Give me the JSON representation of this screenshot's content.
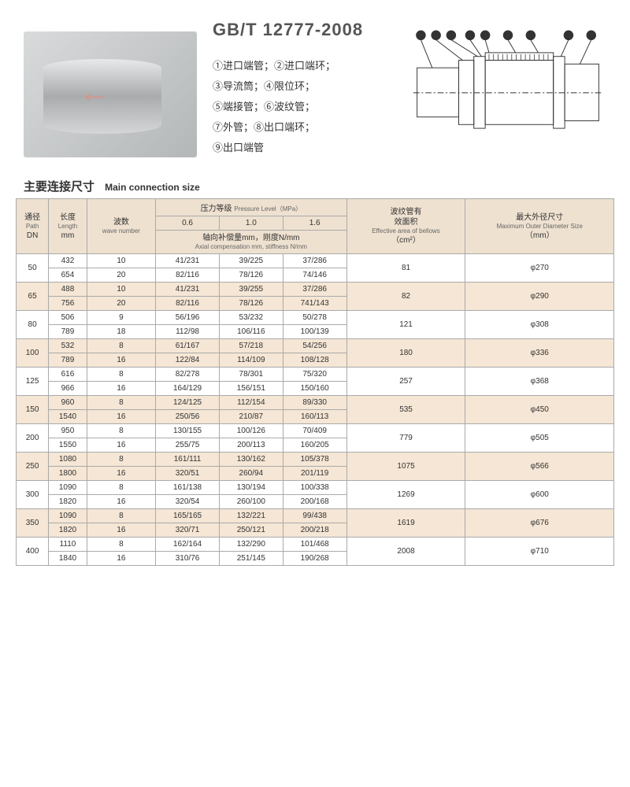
{
  "standard": "GB/T 12777-2008",
  "parts": [
    {
      "n": "①",
      "t": "进口端管；"
    },
    {
      "n": "②",
      "t": "进口端环；"
    },
    {
      "n": "③",
      "t": "导流筒；"
    },
    {
      "n": "④",
      "t": "限位环；"
    },
    {
      "n": "⑤",
      "t": "端接管；"
    },
    {
      "n": "⑥",
      "t": "波纹管；"
    },
    {
      "n": "⑦",
      "t": "外管；"
    },
    {
      "n": "⑧",
      "t": "出口端环；"
    },
    {
      "n": "⑨",
      "t": "出口端管"
    }
  ],
  "section": {
    "cn": "主要连接尺寸",
    "en": "Main connection size"
  },
  "headers": {
    "dn": {
      "cn": "通径",
      "en": "Path",
      "unit": "DN"
    },
    "len": {
      "cn": "长度",
      "en": "Length",
      "unit": "mm"
    },
    "wave": {
      "cn": "波数",
      "en": "wave number"
    },
    "press": {
      "cn": "压力等级",
      "en": "Pressure Level（MPa）"
    },
    "p06": "0.6",
    "p10": "1.0",
    "p16": "1.6",
    "axial": {
      "cn": "轴向补偿量mm，刚度N/mm",
      "en": "Axial compensation mm, stiffness N/mm"
    },
    "eff": {
      "cn": "波纹管有",
      "cn2": "效面积",
      "en": "Effective area of bellows",
      "unit": "（cm²）"
    },
    "od": {
      "cn": "最大外径尺寸",
      "en": "Maximum Outer Diameter Size",
      "unit": "（mm）"
    }
  },
  "rows": [
    {
      "dn": "50",
      "ea": "81",
      "od": "φ270",
      "sub": [
        {
          "l": "432",
          "w": "10",
          "p06": "41/231",
          "p10": "39/225",
          "p16": "37/286"
        },
        {
          "l": "654",
          "w": "20",
          "p06": "82/116",
          "p10": "78/126",
          "p16": "74/146"
        }
      ]
    },
    {
      "dn": "65",
      "ea": "82",
      "od": "φ290",
      "sub": [
        {
          "l": "488",
          "w": "10",
          "p06": "41/231",
          "p10": "39/255",
          "p16": "37/286"
        },
        {
          "l": "756",
          "w": "20",
          "p06": "82/116",
          "p10": "78/126",
          "p16": "741/143"
        }
      ]
    },
    {
      "dn": "80",
      "ea": "121",
      "od": "φ308",
      "sub": [
        {
          "l": "506",
          "w": "9",
          "p06": "56/196",
          "p10": "53/232",
          "p16": "50/278"
        },
        {
          "l": "789",
          "w": "18",
          "p06": "112/98",
          "p10": "106/116",
          "p16": "100/139"
        }
      ]
    },
    {
      "dn": "100",
      "ea": "180",
      "od": "φ336",
      "sub": [
        {
          "l": "532",
          "w": "8",
          "p06": "61/167",
          "p10": "57/218",
          "p16": "54/256"
        },
        {
          "l": "789",
          "w": "16",
          "p06": "122/84",
          "p10": "114/109",
          "p16": "108/128"
        }
      ]
    },
    {
      "dn": "125",
      "ea": "257",
      "od": "φ368",
      "sub": [
        {
          "l": "616",
          "w": "8",
          "p06": "82/278",
          "p10": "78/301",
          "p16": "75/320"
        },
        {
          "l": "966",
          "w": "16",
          "p06": "164/129",
          "p10": "156/151",
          "p16": "150/160"
        }
      ]
    },
    {
      "dn": "150",
      "ea": "535",
      "od": "φ450",
      "sub": [
        {
          "l": "960",
          "w": "8",
          "p06": "124/125",
          "p10": "112/154",
          "p16": "89/330"
        },
        {
          "l": "1540",
          "w": "16",
          "p06": "250/56",
          "p10": "210/87",
          "p16": "160/113"
        }
      ]
    },
    {
      "dn": "200",
      "ea": "779",
      "od": "φ505",
      "sub": [
        {
          "l": "950",
          "w": "8",
          "p06": "130/155",
          "p10": "100/126",
          "p16": "70/409"
        },
        {
          "l": "1550",
          "w": "16",
          "p06": "255/75",
          "p10": "200/113",
          "p16": "160/205"
        }
      ]
    },
    {
      "dn": "250",
      "ea": "1075",
      "od": "φ566",
      "sub": [
        {
          "l": "1080",
          "w": "8",
          "p06": "161/111",
          "p10": "130/162",
          "p16": "105/378"
        },
        {
          "l": "1800",
          "w": "16",
          "p06": "320/51",
          "p10": "260/94",
          "p16": "201/119"
        }
      ]
    },
    {
      "dn": "300",
      "ea": "1269",
      "od": "φ600",
      "sub": [
        {
          "l": "1090",
          "w": "8",
          "p06": "161/138",
          "p10": "130/194",
          "p16": "100/338"
        },
        {
          "l": "1820",
          "w": "16",
          "p06": "320/54",
          "p10": "260/100",
          "p16": "200/168"
        }
      ]
    },
    {
      "dn": "350",
      "ea": "1619",
      "od": "φ676",
      "sub": [
        {
          "l": "1090",
          "w": "8",
          "p06": "165/165",
          "p10": "132/221",
          "p16": "99/438"
        },
        {
          "l": "1820",
          "w": "16",
          "p06": "320/71",
          "p10": "250/121",
          "p16": "200/218"
        }
      ]
    },
    {
      "dn": "400",
      "ea": "2008",
      "od": "φ710",
      "sub": [
        {
          "l": "1110",
          "w": "8",
          "p06": "162/164",
          "p10": "132/290",
          "p16": "101/468"
        },
        {
          "l": "1840",
          "w": "16",
          "p06": "310/76",
          "p10": "251/145",
          "p16": "190/268"
        }
      ]
    }
  ]
}
